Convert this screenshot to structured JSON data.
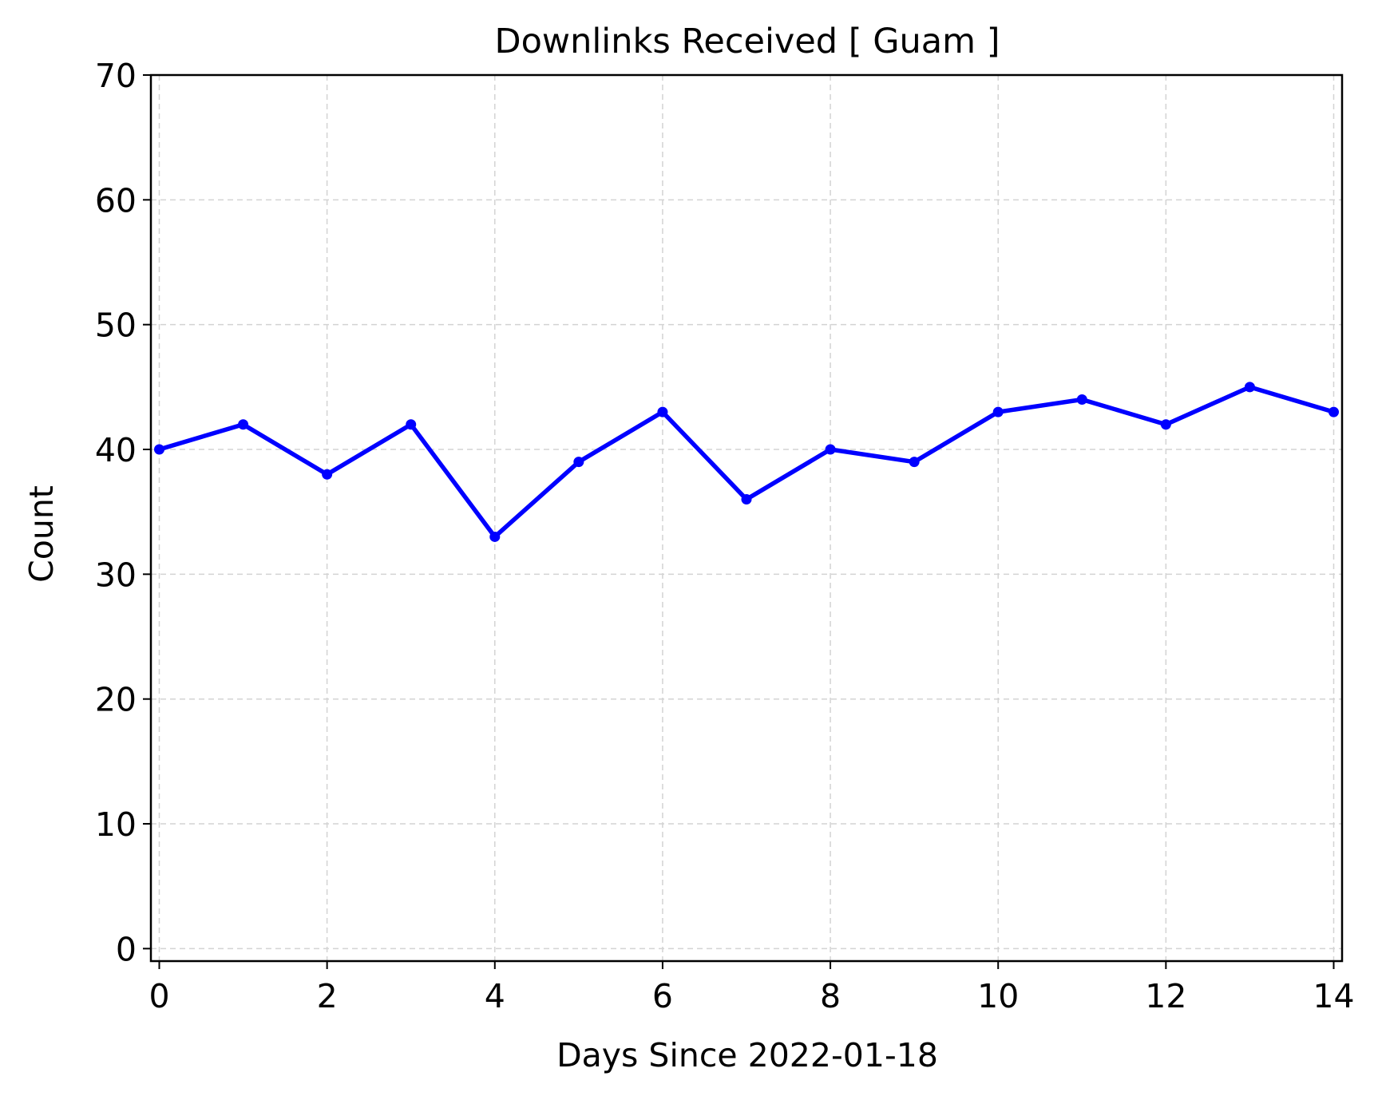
{
  "chart_data": {
    "type": "line",
    "title": "Downlinks Received [ Guam ]",
    "xlabel": "Days Since 2022-01-18",
    "ylabel": "Count",
    "xlim": [
      -0.1,
      14.1
    ],
    "ylim": [
      -1,
      70
    ],
    "xticks": [
      0,
      2,
      4,
      6,
      8,
      10,
      12,
      14
    ],
    "yticks": [
      0,
      10,
      20,
      30,
      40,
      50,
      60,
      70
    ],
    "grid": true,
    "series": [
      {
        "color": "#0000ff",
        "x": [
          0,
          1,
          2,
          3,
          4,
          5,
          6,
          7,
          8,
          9,
          10,
          11,
          12,
          13,
          14
        ],
        "y": [
          40,
          42,
          38,
          42,
          33,
          39,
          43,
          36,
          40,
          39,
          43,
          44,
          42,
          45,
          43
        ]
      }
    ]
  }
}
